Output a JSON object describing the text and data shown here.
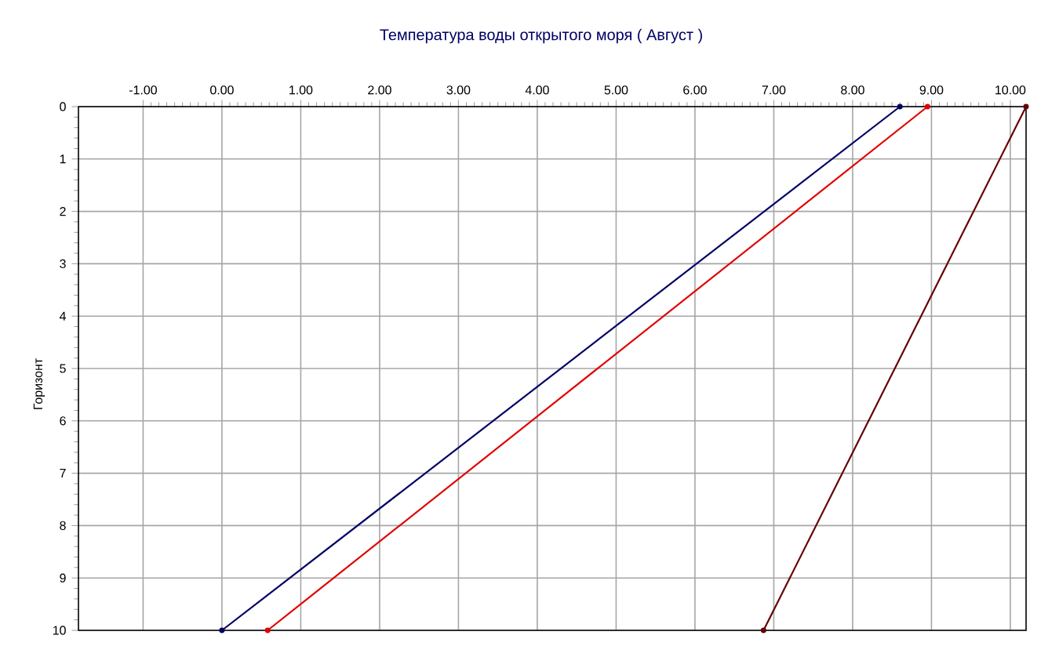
{
  "chart_data": {
    "type": "line",
    "title": "Температура воды открытого моря    ( Август )",
    "ylabel": "Горизонт",
    "series": [
      {
        "color": "#000066",
        "x": [
          8.6,
          0.0
        ],
        "values": [
          0,
          10
        ]
      },
      {
        "color": "#e00000",
        "x": [
          8.95,
          0.58
        ],
        "values": [
          0,
          10
        ]
      },
      {
        "color": "#660000",
        "x": [
          10.2,
          6.87
        ],
        "values": [
          0,
          10
        ]
      }
    ],
    "xlim": [
      -1.82,
      10.2
    ],
    "ylim": [
      10,
      0
    ],
    "xticks": [
      {
        "value": -1,
        "label": "-1.00"
      },
      {
        "value": 0,
        "label": "0.00"
      },
      {
        "value": 1,
        "label": "1.00"
      },
      {
        "value": 2,
        "label": "2.00"
      },
      {
        "value": 3,
        "label": "3.00"
      },
      {
        "value": 4,
        "label": "4.00"
      },
      {
        "value": 5,
        "label": "5.00"
      },
      {
        "value": 6,
        "label": "6.00"
      },
      {
        "value": 7,
        "label": "7.00"
      },
      {
        "value": 8,
        "label": "8.00"
      },
      {
        "value": 9,
        "label": "9.00"
      },
      {
        "value": 10,
        "label": "10.00"
      }
    ],
    "yticks": [
      0,
      1,
      2,
      3,
      4,
      5,
      6,
      7,
      8,
      9,
      10
    ],
    "grid": true,
    "marker": "circle",
    "line_style": "solid"
  }
}
